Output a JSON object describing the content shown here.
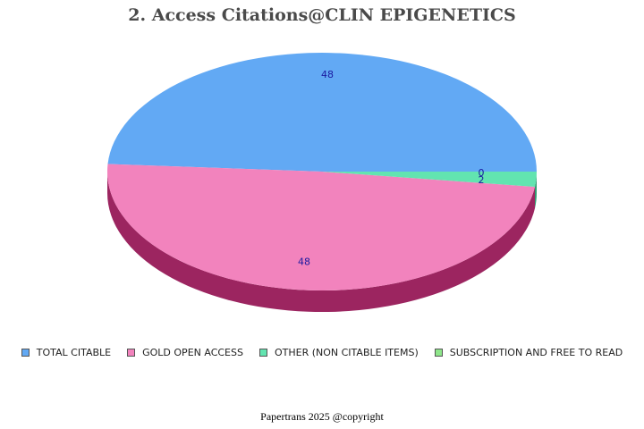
{
  "title": "2. Access Citations@CLIN EPIGENETICS",
  "footer": "Papertrans 2025 @copyright",
  "chart_data": {
    "type": "pie",
    "style": "3d",
    "title": "2. Access Citations@CLIN EPIGENETICS",
    "legend_position": "bottom",
    "slices": [
      {
        "label": "TOTAL CITABLE",
        "value": 48,
        "color": "#62a9f4",
        "side_color": "#3b6fa8"
      },
      {
        "label": "GOLD OPEN ACCESS",
        "value": 48,
        "color": "#f283bd",
        "side_color": "#9c2560"
      },
      {
        "label": "OTHER (NON CITABLE ITEMS)",
        "value": 2,
        "color": "#62e4b0",
        "side_color": "#2e9a6e"
      },
      {
        "label": "SUBSCRIPTION AND FREE TO READ",
        "value": 0,
        "color": "#8ee68a",
        "side_color": "#4f9a4b"
      }
    ]
  }
}
